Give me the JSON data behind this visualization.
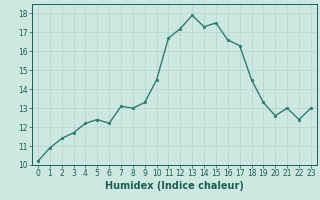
{
  "x": [
    0,
    1,
    2,
    3,
    4,
    5,
    6,
    7,
    8,
    9,
    10,
    11,
    12,
    13,
    14,
    15,
    16,
    17,
    18,
    19,
    20,
    21,
    22,
    23
  ],
  "y": [
    10.2,
    10.9,
    11.4,
    11.7,
    12.2,
    12.4,
    12.2,
    13.1,
    13.0,
    13.3,
    14.5,
    16.7,
    17.2,
    17.9,
    17.3,
    17.5,
    16.6,
    16.3,
    14.5,
    13.3,
    12.6,
    13.0,
    12.4,
    13.0
  ],
  "line_color": "#2d7d6e",
  "marker": "o",
  "marker_size": 1.8,
  "line_width": 1.0,
  "xlabel": "Humidex (Indice chaleur)",
  "xlabel_fontsize": 7,
  "xlabel_weight": "bold",
  "ylim": [
    10,
    18.5
  ],
  "xlim": [
    -0.5,
    23.5
  ],
  "yticks": [
    10,
    11,
    12,
    13,
    14,
    15,
    16,
    17,
    18
  ],
  "xticks": [
    0,
    1,
    2,
    3,
    4,
    5,
    6,
    7,
    8,
    9,
    10,
    11,
    12,
    13,
    14,
    15,
    16,
    17,
    18,
    19,
    20,
    21,
    22,
    23
  ],
  "tick_fontsize": 5.5,
  "bg_color": "#cce8e0",
  "grid_color": "#b0d8d0",
  "axes_color": "#1a6050",
  "tick_color": "#1a6050"
}
